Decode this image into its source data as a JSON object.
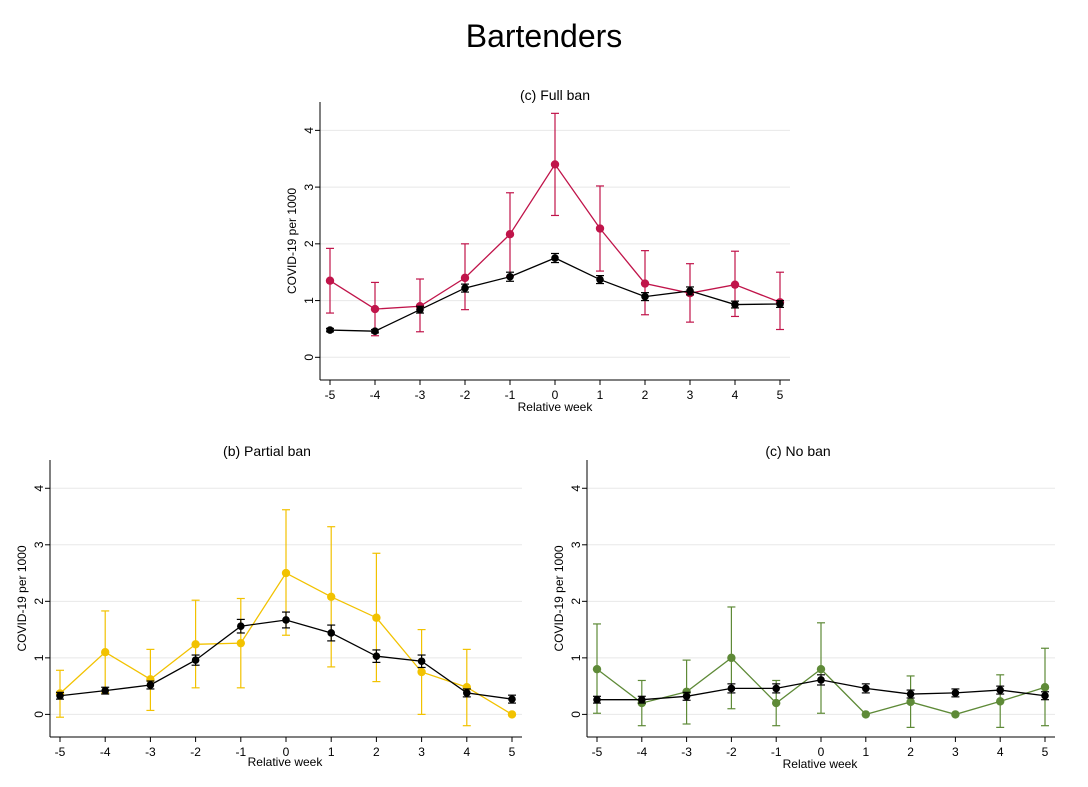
{
  "title": "Bartenders",
  "colors": {
    "full_ban": "#c0144a",
    "partial_ban": "#f2c200",
    "no_ban": "#5e8a37",
    "baseline": "#000000",
    "grid": "#e8e8e8"
  },
  "chart_data": [
    {
      "type": "line",
      "title": "(c) Full ban",
      "xlabel": "Relative week",
      "ylabel": "COVID-19 per 1000",
      "x": [
        -5,
        -4,
        -3,
        -2,
        -1,
        0,
        1,
        2,
        3,
        4,
        5
      ],
      "ylim": [
        -0.4,
        4.5
      ],
      "yticks": [
        0,
        1,
        2,
        3,
        4
      ],
      "xticks": [
        -5,
        -4,
        -3,
        -2,
        -1,
        0,
        1,
        2,
        3,
        4,
        5
      ],
      "grid": true,
      "series": [
        {
          "color": "#c0144a",
          "values": [
            1.35,
            0.85,
            0.9,
            1.4,
            2.17,
            3.4,
            2.27,
            1.3,
            1.13,
            1.28,
            0.97
          ],
          "lower": [
            0.78,
            0.38,
            0.45,
            0.84,
            1.43,
            2.5,
            1.52,
            0.75,
            0.62,
            0.72,
            0.49
          ],
          "upper": [
            1.92,
            1.32,
            1.38,
            2.0,
            2.9,
            4.3,
            3.02,
            1.88,
            1.65,
            1.87,
            1.5
          ]
        },
        {
          "color": "#000000",
          "values": [
            0.48,
            0.46,
            0.84,
            1.22,
            1.42,
            1.75,
            1.37,
            1.07,
            1.17,
            0.93,
            0.94
          ],
          "lower": [
            0.45,
            0.43,
            0.78,
            1.15,
            1.34,
            1.67,
            1.3,
            1.0,
            1.1,
            0.87,
            0.88
          ],
          "upper": [
            0.51,
            0.49,
            0.9,
            1.29,
            1.5,
            1.83,
            1.44,
            1.14,
            1.24,
            0.99,
            1.0
          ]
        }
      ]
    },
    {
      "type": "line",
      "title": "(b) Partial ban",
      "xlabel": "Relative week",
      "ylabel": "COVID-19 per 1000",
      "x": [
        -5,
        -4,
        -3,
        -2,
        -1,
        0,
        1,
        2,
        3,
        4,
        5
      ],
      "ylim": [
        -0.4,
        4.5
      ],
      "yticks": [
        0,
        1,
        2,
        3,
        4
      ],
      "xticks": [
        -5,
        -4,
        -3,
        -2,
        -1,
        0,
        1,
        2,
        3,
        4,
        5
      ],
      "grid": true,
      "series": [
        {
          "color": "#f2c200",
          "values": [
            0.37,
            1.1,
            0.62,
            1.24,
            1.26,
            2.5,
            2.08,
            1.71,
            0.75,
            0.48,
            0.0
          ],
          "lower": [
            -0.05,
            0.38,
            0.07,
            0.47,
            0.47,
            1.4,
            0.84,
            0.58,
            0.0,
            -0.2,
            0.0
          ],
          "upper": [
            0.78,
            1.83,
            1.15,
            2.02,
            2.05,
            3.62,
            3.32,
            2.85,
            1.5,
            1.15,
            0.0
          ]
        },
        {
          "color": "#000000",
          "values": [
            0.33,
            0.42,
            0.52,
            0.96,
            1.56,
            1.67,
            1.44,
            1.03,
            0.94,
            0.38,
            0.27
          ],
          "lower": [
            0.27,
            0.36,
            0.45,
            0.87,
            1.44,
            1.53,
            1.3,
            0.92,
            0.83,
            0.31,
            0.2
          ],
          "upper": [
            0.39,
            0.48,
            0.59,
            1.05,
            1.68,
            1.81,
            1.58,
            1.14,
            1.05,
            0.45,
            0.34
          ]
        }
      ]
    },
    {
      "type": "line",
      "title": "(c) No ban",
      "xlabel": "Relative week",
      "ylabel": "COVID-19 per 1000",
      "x": [
        -5,
        -4,
        -3,
        -2,
        -1,
        0,
        1,
        2,
        3,
        4,
        5
      ],
      "ylim": [
        -0.4,
        4.5
      ],
      "yticks": [
        0,
        1,
        2,
        3,
        4
      ],
      "xticks": [
        -5,
        -4,
        -3,
        -2,
        -1,
        0,
        1,
        2,
        3,
        4,
        5
      ],
      "grid": true,
      "series": [
        {
          "color": "#5e8a37",
          "values": [
            0.8,
            0.2,
            0.4,
            1.0,
            0.2,
            0.8,
            0.0,
            0.22,
            0.0,
            0.23,
            0.48
          ],
          "lower": [
            0.02,
            -0.2,
            -0.17,
            0.1,
            -0.2,
            0.02,
            0.0,
            -0.23,
            0.0,
            -0.23,
            -0.2
          ],
          "upper": [
            1.6,
            0.6,
            0.96,
            1.9,
            0.6,
            1.62,
            0.0,
            0.68,
            0.0,
            0.7,
            1.17
          ]
        },
        {
          "color": "#000000",
          "values": [
            0.26,
            0.26,
            0.32,
            0.46,
            0.46,
            0.61,
            0.46,
            0.36,
            0.38,
            0.43,
            0.33
          ],
          "lower": [
            0.2,
            0.2,
            0.25,
            0.38,
            0.38,
            0.52,
            0.38,
            0.29,
            0.31,
            0.36,
            0.26
          ],
          "upper": [
            0.32,
            0.32,
            0.39,
            0.54,
            0.54,
            0.7,
            0.54,
            0.43,
            0.45,
            0.5,
            0.4
          ]
        }
      ]
    }
  ]
}
